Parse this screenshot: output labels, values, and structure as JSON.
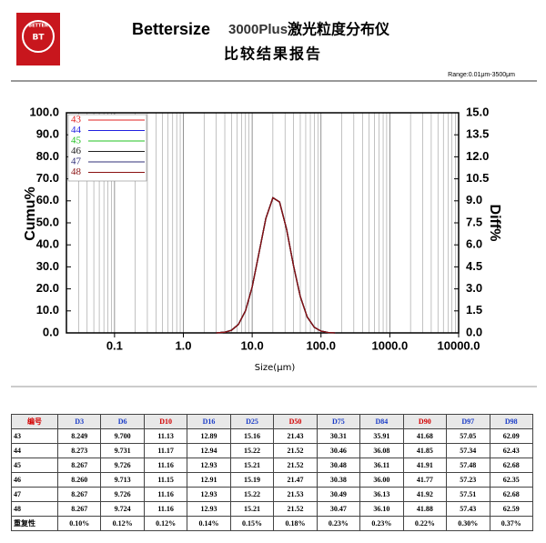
{
  "header": {
    "logo_top": "BETTER",
    "logo_center": "BT",
    "brand": "Bettersize",
    "model": "3000Plus",
    "title_cn": "激光粒度分布仪",
    "subtitle": "比较结果报告",
    "range": "Range:0.01μm-3500μm"
  },
  "chart_data": {
    "type": "line",
    "x_label": "Size(μm)",
    "y_label": "Cumu%",
    "y2_label": "Diff%",
    "log_x": true,
    "grid": "x",
    "xlim": [
      0.02,
      10000
    ],
    "xticks": [
      0.1,
      {
        "value": 1,
        "label": "1.0"
      },
      {
        "value": 10,
        "label": "10.0"
      },
      {
        "value": 100,
        "label": "100.0"
      },
      {
        "value": 1000,
        "label": "1000.0"
      },
      {
        "value": 10000,
        "label": "10000.0"
      }
    ],
    "ylim": [
      0,
      100
    ],
    "yticks": [
      {
        "value": 0,
        "label": "0.0"
      },
      {
        "value": 10,
        "label": "10.0"
      },
      {
        "value": 20,
        "label": "20.0"
      },
      {
        "value": 30,
        "label": "30.0"
      },
      {
        "value": 40,
        "label": "40.0"
      },
      {
        "value": 50,
        "label": "50.0"
      },
      {
        "value": 60,
        "label": "60.0"
      },
      {
        "value": 70,
        "label": "70.0"
      },
      {
        "value": 80,
        "label": "80.0"
      },
      {
        "value": 90,
        "label": "90.0"
      },
      {
        "value": 100,
        "label": "100.0"
      }
    ],
    "y2lim": [
      0,
      15
    ],
    "y2ticks": [
      {
        "value": 0,
        "label": "0.0"
      },
      1.5,
      {
        "value": 3,
        "label": "3.0"
      },
      4.5,
      {
        "value": 6,
        "label": "6.0"
      },
      7.5,
      {
        "value": 9,
        "label": "9.0"
      },
      10.5,
      {
        "value": 12,
        "label": "12.0"
      },
      13.5,
      {
        "value": 15,
        "label": "15.0"
      }
    ],
    "x": [
      3,
      4,
      5,
      6.3,
      8,
      10,
      12.6,
      15.8,
      20,
      25,
      31.6,
      40,
      50,
      63,
      80,
      100,
      126,
      160
    ],
    "series": [
      {
        "name": "43",
        "color": "#e02020",
        "axis": "y2",
        "values": [
          0,
          0.05,
          0.18,
          0.57,
          1.51,
          3.13,
          5.48,
          7.8,
          9.21,
          8.92,
          7.07,
          4.55,
          2.48,
          1.09,
          0.38,
          0.12,
          0.03,
          0
        ]
      },
      {
        "name": "44",
        "color": "#2020e0",
        "axis": "y2",
        "values": [
          0,
          0.05,
          0.18,
          0.57,
          1.51,
          3.13,
          5.48,
          7.8,
          9.21,
          8.92,
          7.07,
          4.55,
          2.48,
          1.09,
          0.38,
          0.12,
          0.03,
          0
        ]
      },
      {
        "name": "45",
        "color": "#20c020",
        "axis": "y2",
        "values": [
          0,
          0.05,
          0.18,
          0.57,
          1.51,
          3.13,
          5.48,
          7.8,
          9.21,
          8.92,
          7.07,
          4.55,
          2.48,
          1.09,
          0.38,
          0.12,
          0.03,
          0
        ]
      },
      {
        "name": "46",
        "color": "#202020",
        "axis": "y2",
        "values": [
          0,
          0.05,
          0.18,
          0.57,
          1.51,
          3.13,
          5.48,
          7.8,
          9.21,
          8.92,
          7.07,
          4.55,
          2.48,
          1.09,
          0.38,
          0.12,
          0.03,
          0
        ]
      },
      {
        "name": "47",
        "color": "#30307a",
        "axis": "y2",
        "values": [
          0,
          0.05,
          0.18,
          0.57,
          1.51,
          3.13,
          5.48,
          7.8,
          9.21,
          8.92,
          7.07,
          4.55,
          2.48,
          1.09,
          0.38,
          0.12,
          0.03,
          0
        ]
      },
      {
        "name": "48",
        "color": "#8a1010",
        "axis": "y2",
        "values": [
          0,
          0.05,
          0.18,
          0.57,
          1.51,
          3.13,
          5.48,
          7.8,
          9.21,
          8.92,
          7.07,
          4.55,
          2.48,
          1.09,
          0.38,
          0.12,
          0.03,
          0
        ]
      }
    ]
  },
  "table": {
    "header": [
      "编号",
      "D3",
      "D6",
      "D10",
      "D16",
      "D25",
      "D50",
      "D75",
      "D84",
      "D90",
      "D97",
      "D98"
    ],
    "rows": [
      [
        "43",
        "8.249",
        "9.700",
        "11.13",
        "12.89",
        "15.16",
        "21.43",
        "30.31",
        "35.91",
        "41.68",
        "57.05",
        "62.09"
      ],
      [
        "44",
        "8.273",
        "9.731",
        "11.17",
        "12.94",
        "15.22",
        "21.52",
        "30.46",
        "36.08",
        "41.85",
        "57.34",
        "62.43"
      ],
      [
        "45",
        "8.267",
        "9.726",
        "11.16",
        "12.93",
        "15.21",
        "21.52",
        "30.48",
        "36.11",
        "41.91",
        "57.48",
        "62.68"
      ],
      [
        "46",
        "8.260",
        "9.713",
        "11.15",
        "12.91",
        "15.19",
        "21.47",
        "30.38",
        "36.00",
        "41.77",
        "57.23",
        "62.35"
      ],
      [
        "47",
        "8.267",
        "9.726",
        "11.16",
        "12.93",
        "15.22",
        "21.53",
        "30.49",
        "36.13",
        "41.92",
        "57.51",
        "62.68"
      ],
      [
        "48",
        "8.267",
        "9.724",
        "11.16",
        "12.93",
        "15.21",
        "21.52",
        "30.47",
        "36.10",
        "41.88",
        "57.43",
        "62.59"
      ],
      [
        "重复性",
        "0.10%",
        "0.12%",
        "0.12%",
        "0.14%",
        "0.15%",
        "0.18%",
        "0.23%",
        "0.23%",
        "0.22%",
        "0.30%",
        "0.37%"
      ]
    ]
  }
}
